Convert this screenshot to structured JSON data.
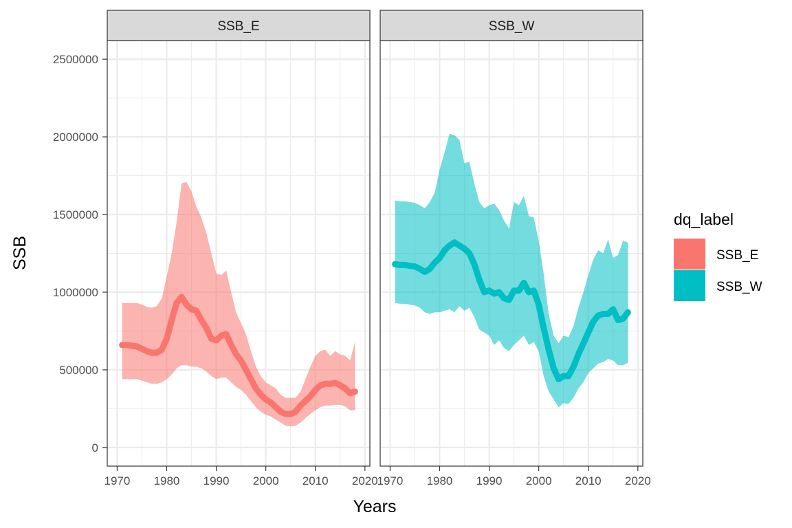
{
  "chart_data": {
    "type": "area",
    "xlabel": "Years",
    "ylabel": "SSB",
    "xlim": [
      1968,
      2021
    ],
    "ylim": [
      -120000,
      2620000
    ],
    "x_ticks": [
      1970,
      1980,
      1990,
      2000,
      2010,
      2020
    ],
    "x_tick_labels": [
      "1970",
      "1980",
      "1990",
      "2000",
      "2010",
      "2020"
    ],
    "y_ticks": [
      0,
      500000,
      1000000,
      1500000,
      2000000,
      2500000
    ],
    "y_tick_labels": [
      "0",
      "500000",
      "1000000",
      "1500000",
      "2000000",
      "2500000"
    ],
    "grid": true,
    "legend": {
      "title": "dq_label",
      "position": "right",
      "entries": [
        {
          "label": "SSB_E",
          "color": "#F8766D"
        },
        {
          "label": "SSB_W",
          "color": "#00BFC4"
        }
      ]
    },
    "panels": [
      {
        "strip_label": "SSB_E",
        "color": "#F8766D",
        "years": [
          1971,
          1972,
          1973,
          1974,
          1975,
          1976,
          1977,
          1978,
          1979,
          1980,
          1981,
          1982,
          1983,
          1984,
          1985,
          1986,
          1987,
          1988,
          1989,
          1990,
          1991,
          1992,
          1993,
          1994,
          1995,
          1996,
          1997,
          1998,
          1999,
          2000,
          2001,
          2002,
          2003,
          2004,
          2005,
          2006,
          2007,
          2008,
          2009,
          2010,
          2011,
          2012,
          2013,
          2014,
          2015,
          2016,
          2017,
          2018
        ],
        "estimate": [
          660000,
          660000,
          655000,
          650000,
          635000,
          620000,
          610000,
          610000,
          630000,
          700000,
          820000,
          930000,
          970000,
          920000,
          890000,
          880000,
          820000,
          770000,
          700000,
          690000,
          720000,
          730000,
          660000,
          600000,
          560000,
          500000,
          440000,
          380000,
          340000,
          310000,
          290000,
          260000,
          230000,
          215000,
          215000,
          230000,
          270000,
          300000,
          330000,
          370000,
          400000,
          410000,
          410000,
          415000,
          400000,
          380000,
          350000,
          360000
        ],
        "lower": [
          440000,
          440000,
          440000,
          440000,
          430000,
          420000,
          410000,
          410000,
          420000,
          440000,
          470000,
          510000,
          530000,
          530000,
          520000,
          520000,
          510000,
          490000,
          460000,
          440000,
          450000,
          450000,
          420000,
          390000,
          370000,
          340000,
          300000,
          260000,
          230000,
          210000,
          200000,
          180000,
          160000,
          140000,
          135000,
          140000,
          160000,
          190000,
          215000,
          240000,
          260000,
          270000,
          270000,
          275000,
          275000,
          265000,
          240000,
          240000
        ],
        "upper": [
          930000,
          930000,
          930000,
          930000,
          920000,
          905000,
          900000,
          910000,
          960000,
          1100000,
          1250000,
          1450000,
          1700000,
          1710000,
          1650000,
          1550000,
          1480000,
          1380000,
          1250000,
          1120000,
          1110000,
          1140000,
          1000000,
          870000,
          800000,
          730000,
          620000,
          520000,
          460000,
          420000,
          400000,
          380000,
          340000,
          320000,
          320000,
          320000,
          360000,
          440000,
          520000,
          590000,
          620000,
          630000,
          590000,
          620000,
          600000,
          590000,
          560000,
          680000
        ]
      },
      {
        "strip_label": "SSB_W",
        "color": "#00BFC4",
        "years": [
          1971,
          1972,
          1973,
          1974,
          1975,
          1976,
          1977,
          1978,
          1979,
          1980,
          1981,
          1982,
          1983,
          1984,
          1985,
          1986,
          1987,
          1988,
          1989,
          1990,
          1991,
          1992,
          1993,
          1994,
          1995,
          1996,
          1997,
          1998,
          1999,
          2000,
          2001,
          2002,
          2003,
          2004,
          2005,
          2006,
          2007,
          2008,
          2009,
          2010,
          2011,
          2012,
          2013,
          2014,
          2015,
          2016,
          2017,
          2018
        ],
        "estimate": [
          1180000,
          1175000,
          1175000,
          1170000,
          1165000,
          1150000,
          1130000,
          1150000,
          1190000,
          1220000,
          1270000,
          1300000,
          1320000,
          1300000,
          1280000,
          1250000,
          1180000,
          1080000,
          1000000,
          1010000,
          990000,
          1000000,
          960000,
          950000,
          1010000,
          1010000,
          1060000,
          1000000,
          1010000,
          920000,
          770000,
          630000,
          510000,
          440000,
          460000,
          460000,
          520000,
          600000,
          670000,
          740000,
          810000,
          850000,
          860000,
          860000,
          890000,
          820000,
          830000,
          870000
        ],
        "lower": [
          930000,
          925000,
          925000,
          920000,
          915000,
          900000,
          870000,
          860000,
          870000,
          870000,
          880000,
          890000,
          870000,
          910000,
          880000,
          900000,
          840000,
          760000,
          740000,
          720000,
          660000,
          690000,
          640000,
          620000,
          660000,
          690000,
          720000,
          660000,
          680000,
          620000,
          460000,
          360000,
          310000,
          260000,
          285000,
          280000,
          320000,
          380000,
          420000,
          480000,
          510000,
          540000,
          550000,
          570000,
          560000,
          530000,
          530000,
          545000
        ],
        "upper": [
          1590000,
          1585000,
          1585000,
          1580000,
          1575000,
          1560000,
          1540000,
          1580000,
          1640000,
          1790000,
          1900000,
          2020000,
          2010000,
          1980000,
          1830000,
          1840000,
          1700000,
          1580000,
          1540000,
          1560000,
          1570000,
          1530000,
          1460000,
          1410000,
          1580000,
          1560000,
          1620000,
          1490000,
          1480000,
          1330000,
          1120000,
          860000,
          720000,
          670000,
          720000,
          710000,
          780000,
          900000,
          1000000,
          1110000,
          1210000,
          1270000,
          1250000,
          1340000,
          1220000,
          1240000,
          1330000,
          1320000
        ]
      }
    ]
  }
}
